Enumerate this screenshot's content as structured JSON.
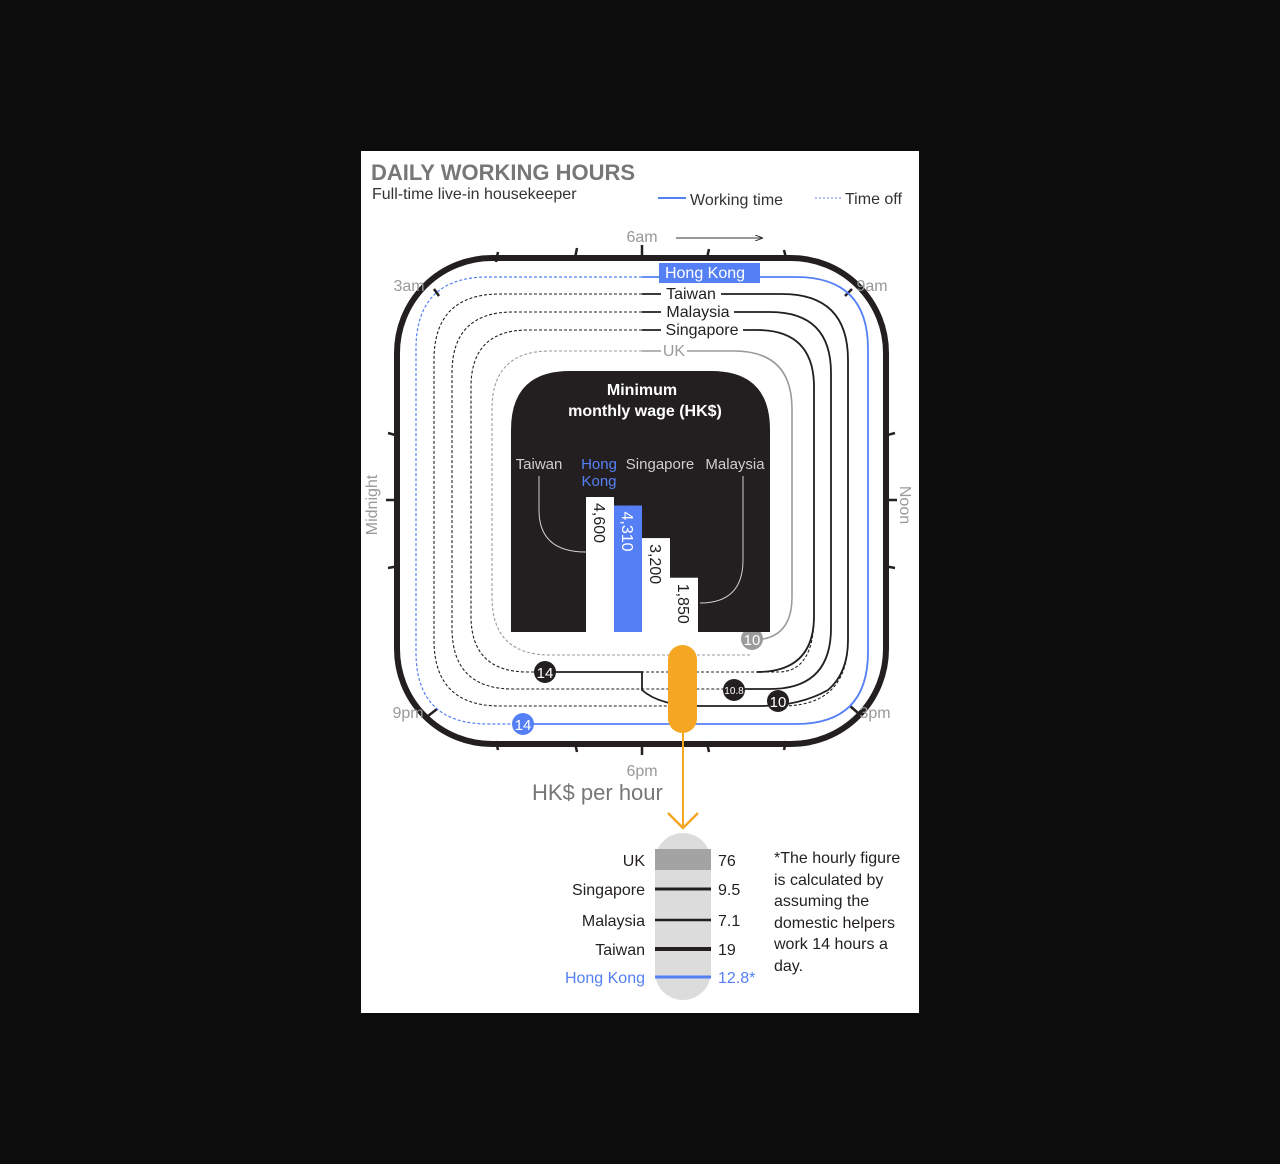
{
  "header": {
    "title": "DAILY WORKING HOURS",
    "subtitle": "Full-time live-in housekeeper"
  },
  "legend": {
    "working": "Working time",
    "off": "Time off"
  },
  "clock_labels": {
    "top": "6am",
    "top_right": "9am",
    "right": "Noon",
    "bottom_right": "3pm",
    "bottom": "6pm",
    "bottom_left": "9pm",
    "left": "Midnight",
    "top_left": "3am"
  },
  "colors": {
    "accent_blue": "#5580f5",
    "orange": "#f5a623",
    "dark": "#231f20",
    "grey_uk": "#9b9b9b"
  },
  "chart_data": [
    {
      "type": "radial-track",
      "title": "DAILY WORKING HOURS",
      "subtitle": "Full-time live-in housekeeper",
      "series": [
        {
          "name": "Hong Kong",
          "working_hours": 14,
          "highlight": true
        },
        {
          "name": "Taiwan",
          "working_hours": 14
        },
        {
          "name": "Malaysia",
          "working_hours": 10.8
        },
        {
          "name": "Singapore",
          "working_hours": 10
        },
        {
          "name": "UK",
          "working_hours": 10
        }
      ],
      "value_labels": [
        "14",
        "14",
        "10.8",
        "10",
        "10"
      ]
    },
    {
      "type": "bar",
      "title": "Minimum monthly wage (HK$)",
      "categories": [
        "Taiwan",
        "Hong Kong",
        "Singapore",
        "Malaysia"
      ],
      "category_labels": [
        [
          "Taiwan"
        ],
        [
          "Hong",
          "Kong"
        ],
        [
          "Singapore"
        ],
        [
          "Malaysia"
        ]
      ],
      "values": [
        4600,
        4310,
        3200,
        1850
      ],
      "value_labels": [
        "4,600",
        "4,310",
        "3,200",
        "1,850"
      ],
      "highlight": "Hong Kong",
      "ylim": [
        0,
        4600
      ]
    },
    {
      "type": "scale",
      "title": "HK$ per hour",
      "categories": [
        "UK",
        "Singapore",
        "Malaysia",
        "Taiwan",
        "Hong Kong"
      ],
      "values": [
        76,
        9.5,
        7.1,
        19,
        12.8
      ],
      "value_labels": [
        "76",
        "9.5",
        "7.1",
        "19",
        "12.8*"
      ],
      "highlight": "Hong Kong"
    }
  ],
  "footnote": "*The hourly figure is calculated by assuming the domestic helpers work 14 hours a day."
}
